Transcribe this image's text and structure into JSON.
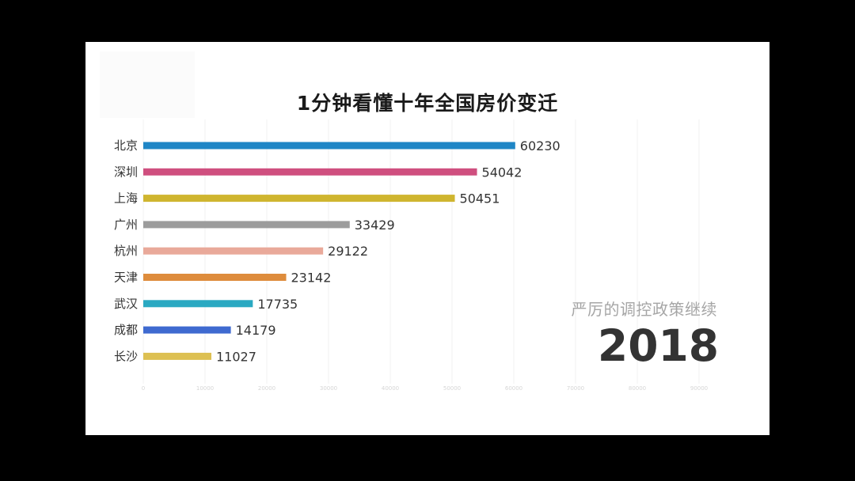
{
  "chart_data": {
    "type": "bar",
    "orientation": "horizontal",
    "title": "1分钟看懂十年全国房价变迁",
    "categories": [
      "北京",
      "深圳",
      "上海",
      "广州",
      "杭州",
      "天津",
      "武汉",
      "成都",
      "长沙"
    ],
    "values": [
      60230,
      54042,
      50451,
      33429,
      29122,
      23142,
      17735,
      14179,
      11027
    ],
    "colors": [
      "#1f86c6",
      "#cf4f7f",
      "#cfb52f",
      "#9c9c9c",
      "#e9a99a",
      "#de8c3c",
      "#2aa9c2",
      "#3f6ad0",
      "#ddc052"
    ],
    "xlim": [
      0,
      90000
    ],
    "xticks": [
      0,
      10000,
      20000,
      30000,
      40000,
      50000,
      60000,
      70000,
      80000,
      90000
    ],
    "grid": true,
    "annotation": "严厉的调控政策继续",
    "year": "2018"
  }
}
